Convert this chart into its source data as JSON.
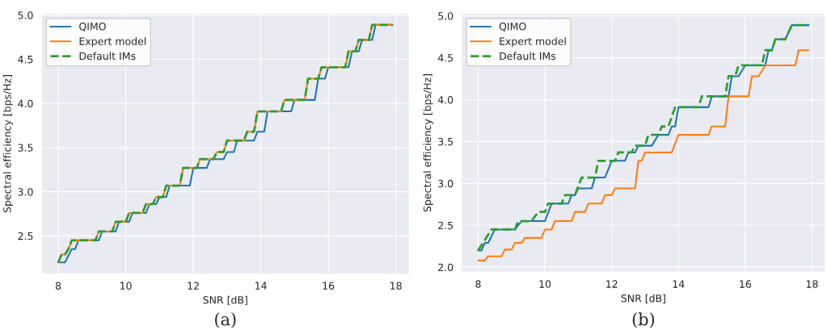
{
  "chart_data": [
    {
      "type": "line",
      "xlabel": "SNR [dB]",
      "ylabel": "Spectral efficiency [bps/Hz]",
      "xlim": [
        7.5,
        18.4
      ],
      "ylim": [
        2.07,
        5.02
      ],
      "xticks": [
        8,
        10,
        12,
        14,
        16,
        18
      ],
      "yticks": [
        2.5,
        {
          "value": 3,
          "label": "3.0"
        },
        3.5,
        {
          "value": 4,
          "label": "4.0"
        },
        4.5,
        {
          "value": 5,
          "label": "5.0"
        }
      ],
      "grid": true,
      "legend": "top left",
      "annotations": [
        "(a)"
      ],
      "series": [
        {
          "name": "QIMO",
          "color": "#1f77b4",
          "line_style": "solid",
          "x": [
            8.0,
            8.2,
            8.4,
            8.5,
            8.6,
            9.2,
            9.3,
            9.7,
            9.8,
            10.1,
            10.2,
            10.6,
            10.7,
            10.9,
            11.0,
            11.2,
            11.3,
            11.9,
            12.0,
            12.4,
            12.5,
            12.9,
            13.0,
            13.2,
            13.3,
            13.8,
            13.9,
            14.1,
            14.2,
            14.9,
            15.0,
            15.6,
            15.7,
            15.9,
            16.0,
            16.6,
            16.7,
            16.9,
            17.0,
            17.3,
            17.4,
            17.9
          ],
          "values": [
            2.2,
            2.2,
            2.35,
            2.35,
            2.45,
            2.45,
            2.55,
            2.55,
            2.66,
            2.66,
            2.76,
            2.76,
            2.86,
            2.86,
            2.94,
            2.94,
            3.07,
            3.07,
            3.27,
            3.27,
            3.37,
            3.37,
            3.45,
            3.45,
            3.58,
            3.58,
            3.68,
            3.68,
            3.91,
            3.91,
            4.04,
            4.04,
            4.28,
            4.28,
            4.41,
            4.41,
            4.59,
            4.59,
            4.72,
            4.72,
            4.89,
            4.89
          ]
        },
        {
          "name": "Expert model",
          "color": "#ff7f0e",
          "line_style": "solid",
          "x": [
            8.0,
            8.1,
            8.2,
            8.3,
            8.4,
            9.1,
            9.2,
            9.6,
            9.7,
            10.0,
            10.1,
            10.5,
            10.6,
            10.8,
            10.9,
            11.1,
            11.2,
            11.6,
            11.7,
            12.1,
            12.2,
            12.6,
            12.7,
            12.9,
            13.0,
            13.5,
            13.6,
            13.8,
            13.9,
            14.6,
            14.7,
            15.3,
            15.4,
            15.7,
            15.8,
            16.5,
            16.6,
            16.8,
            16.9,
            17.2,
            17.3,
            17.9
          ],
          "values": [
            2.2,
            2.29,
            2.29,
            2.35,
            2.45,
            2.45,
            2.55,
            2.55,
            2.66,
            2.66,
            2.76,
            2.76,
            2.86,
            2.86,
            2.94,
            2.94,
            3.07,
            3.07,
            3.27,
            3.27,
            3.37,
            3.37,
            3.45,
            3.45,
            3.58,
            3.58,
            3.68,
            3.68,
            3.91,
            3.91,
            4.04,
            4.04,
            4.28,
            4.28,
            4.41,
            4.41,
            4.59,
            4.59,
            4.72,
            4.72,
            4.89,
            4.89
          ]
        },
        {
          "name": "Default IMs",
          "color": "#2ca02c",
          "line_style": "dashed",
          "x": [
            8.0,
            8.1,
            8.2,
            8.3,
            8.4,
            9.1,
            9.2,
            9.6,
            9.7,
            10.0,
            10.1,
            10.5,
            10.6,
            10.8,
            10.9,
            11.1,
            11.2,
            11.6,
            11.7,
            12.1,
            12.2,
            12.6,
            12.7,
            12.9,
            13.0,
            13.5,
            13.6,
            13.8,
            13.9,
            14.6,
            14.7,
            15.3,
            15.4,
            15.7,
            15.8,
            16.5,
            16.6,
            16.8,
            16.9,
            17.2,
            17.3,
            17.9
          ],
          "values": [
            2.2,
            2.29,
            2.29,
            2.35,
            2.45,
            2.45,
            2.55,
            2.55,
            2.66,
            2.66,
            2.76,
            2.76,
            2.86,
            2.86,
            2.94,
            2.94,
            3.07,
            3.07,
            3.27,
            3.27,
            3.37,
            3.37,
            3.45,
            3.45,
            3.58,
            3.58,
            3.68,
            3.68,
            3.91,
            3.91,
            4.04,
            4.04,
            4.28,
            4.28,
            4.41,
            4.41,
            4.59,
            4.59,
            4.72,
            4.72,
            4.89,
            4.89
          ]
        }
      ]
    },
    {
      "type": "line",
      "xlabel": "SNR [dB]",
      "ylabel": "Spectral efficiency [bps/Hz]",
      "xlim": [
        7.5,
        18.4
      ],
      "ylim": [
        1.94,
        5.03
      ],
      "xticks": [
        8,
        10,
        12,
        14,
        16,
        18
      ],
      "yticks": [
        {
          "value": 2,
          "label": "2.0"
        },
        2.5,
        {
          "value": 3,
          "label": "3.0"
        },
        3.5,
        {
          "value": 4,
          "label": "4.0"
        },
        4.5,
        {
          "value": 5,
          "label": "5.0"
        }
      ],
      "grid": true,
      "legend": "top left",
      "annotations": [
        "(b)"
      ],
      "series": [
        {
          "name": "QIMO",
          "color": "#1f77b4",
          "line_style": "solid",
          "x": [
            8.0,
            8.1,
            8.2,
            8.3,
            8.5,
            9.1,
            9.3,
            10.0,
            10.2,
            10.7,
            10.8,
            10.9,
            11.0,
            11.4,
            11.5,
            11.8,
            12.0,
            12.4,
            12.5,
            12.7,
            12.8,
            13.2,
            13.4,
            13.7,
            13.8,
            13.9,
            14.0,
            14.9,
            15.0,
            15.5,
            15.6,
            15.8,
            16.0,
            16.6,
            16.7,
            16.8,
            16.9,
            17.2,
            17.4,
            17.9
          ],
          "values": [
            2.2,
            2.2,
            2.29,
            2.29,
            2.45,
            2.45,
            2.55,
            2.55,
            2.76,
            2.76,
            2.86,
            2.86,
            2.94,
            2.94,
            3.07,
            3.07,
            3.27,
            3.27,
            3.37,
            3.37,
            3.45,
            3.45,
            3.58,
            3.58,
            3.68,
            3.68,
            3.91,
            3.91,
            4.04,
            4.04,
            4.28,
            4.28,
            4.41,
            4.41,
            4.59,
            4.59,
            4.72,
            4.72,
            4.89,
            4.89
          ]
        },
        {
          "name": "Expert model",
          "color": "#ff7f0e",
          "line_style": "solid",
          "x": [
            8.0,
            8.2,
            8.3,
            8.7,
            8.8,
            9.0,
            9.1,
            9.3,
            9.4,
            9.9,
            10.0,
            10.2,
            10.3,
            10.8,
            10.9,
            11.2,
            11.3,
            11.7,
            11.8,
            12.0,
            12.1,
            12.7,
            12.8,
            12.9,
            13.0,
            13.8,
            14.0,
            14.9,
            15.0,
            15.4,
            15.5,
            16.1,
            16.2,
            16.4,
            16.6,
            17.5,
            17.6,
            17.9
          ],
          "values": [
            2.08,
            2.08,
            2.13,
            2.13,
            2.21,
            2.21,
            2.29,
            2.29,
            2.35,
            2.35,
            2.45,
            2.45,
            2.55,
            2.55,
            2.66,
            2.66,
            2.76,
            2.76,
            2.86,
            2.86,
            2.94,
            2.94,
            3.27,
            3.27,
            3.37,
            3.37,
            3.58,
            3.58,
            3.68,
            3.68,
            4.04,
            4.04,
            4.28,
            4.28,
            4.41,
            4.41,
            4.59,
            4.59
          ]
        },
        {
          "name": "Default IMs",
          "color": "#2ca02c",
          "line_style": "dashed",
          "x": [
            8.0,
            8.4,
            9.1,
            9.2,
            9.6,
            9.8,
            10.0,
            10.1,
            10.5,
            10.6,
            10.9,
            11.1,
            11.5,
            11.6,
            12.1,
            12.2,
            12.6,
            12.7,
            13.0,
            13.1,
            13.4,
            13.5,
            13.7,
            13.9,
            14.6,
            14.7,
            15.4,
            15.5,
            15.7,
            15.8,
            16.5,
            16.6,
            16.8,
            16.9,
            17.2,
            17.4,
            17.9
          ],
          "values": [
            2.2,
            2.45,
            2.45,
            2.55,
            2.55,
            2.66,
            2.66,
            2.76,
            2.76,
            2.86,
            2.86,
            3.07,
            3.07,
            3.27,
            3.27,
            3.37,
            3.37,
            3.45,
            3.45,
            3.58,
            3.58,
            3.68,
            3.68,
            3.91,
            3.91,
            4.04,
            4.04,
            4.28,
            4.28,
            4.41,
            4.41,
            4.59,
            4.59,
            4.72,
            4.72,
            4.89,
            4.89
          ]
        }
      ]
    }
  ]
}
